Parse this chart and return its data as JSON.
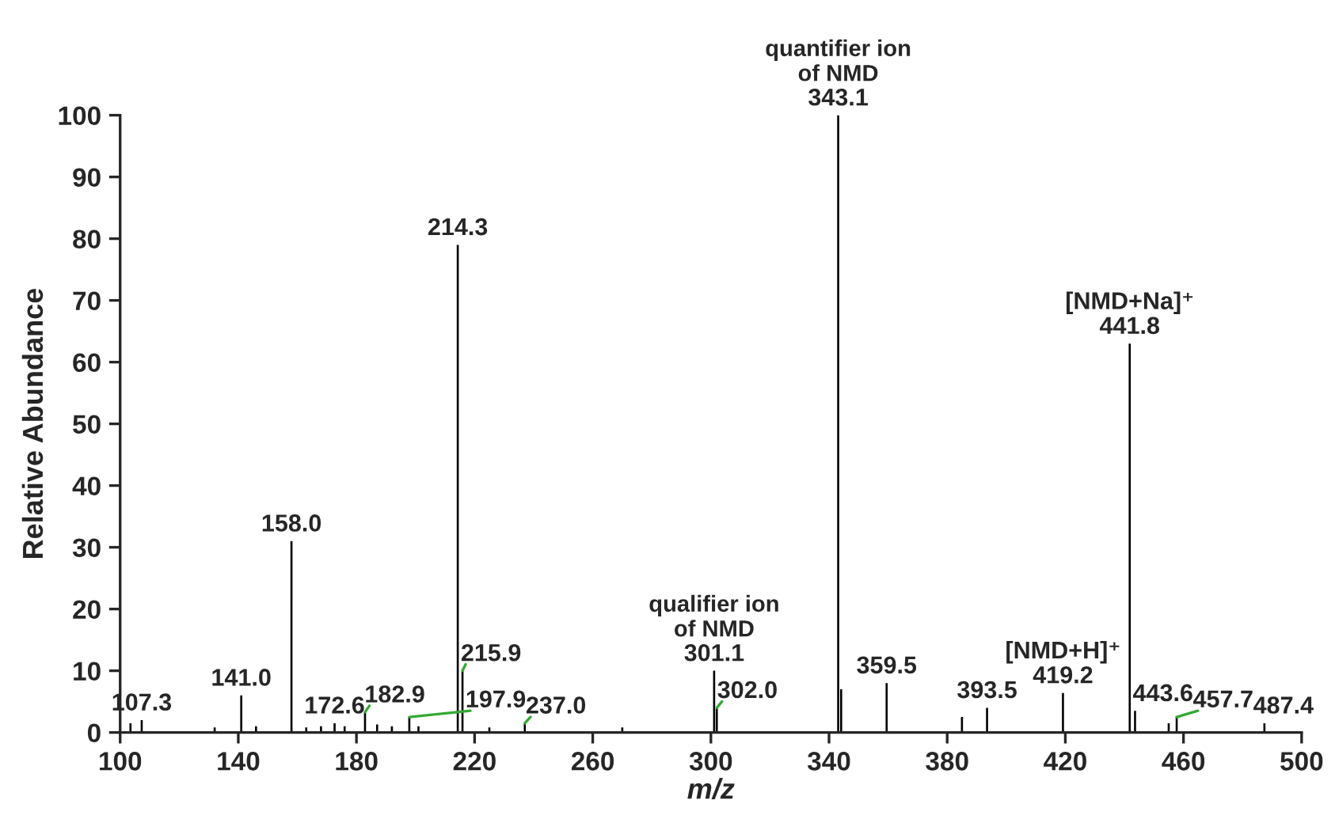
{
  "chart_data": {
    "type": "bar",
    "xlabel": "m/z",
    "ylabel": "Relative Abundance",
    "x": [
      103.5,
      107.3,
      132,
      141.0,
      146,
      158.0,
      163,
      168,
      172.6,
      176,
      182.9,
      187,
      192,
      197.9,
      201,
      214.3,
      215.9,
      225,
      237.0,
      270,
      301.1,
      302.0,
      343.1,
      344.1,
      359.5,
      385.0,
      393.5,
      419.2,
      441.8,
      443.6,
      455.0,
      457.7,
      487.4
    ],
    "values": [
      1.5,
      2,
      0.8,
      6,
      1,
      31,
      0.8,
      1,
      1.5,
      1,
      3.3,
      1.3,
      1,
      2.5,
      1,
      79,
      10,
      0.8,
      1.5,
      0.8,
      10,
      4,
      100,
      7,
      8,
      2.5,
      4,
      6.4,
      63,
      3.5,
      1.5,
      2.5,
      1.5
    ],
    "color": "#000000",
    "annotations": [
      {
        "text": "107.3",
        "x": 107.3,
        "y": 2
      },
      {
        "text": "141.0",
        "x": 141.0,
        "y": 6
      },
      {
        "text": "158.0",
        "x": 158.0,
        "y": 31
      },
      {
        "text": "172.6",
        "x": 172.6,
        "y": 1.5
      },
      {
        "text": "182.9",
        "x": 182.9,
        "y": 3.3
      },
      {
        "text": "197.9",
        "x": 197.9,
        "y": 2.5
      },
      {
        "text": "214.3",
        "x": 214.3,
        "y": 79
      },
      {
        "text": "215.9",
        "x": 215.9,
        "y": 10
      },
      {
        "text": "237.0",
        "x": 237.0,
        "y": 1.5
      },
      {
        "text": "301.1",
        "x": 301.1,
        "y": 10
      },
      {
        "text": "302.0",
        "x": 302.0,
        "y": 4
      },
      {
        "text": "343.1",
        "x": 343.1,
        "y": 100
      },
      {
        "text": "359.5",
        "x": 359.5,
        "y": 8
      },
      {
        "text": "393.5",
        "x": 393.5,
        "y": 4
      },
      {
        "text": "419.2",
        "x": 419.2,
        "y": 6.4
      },
      {
        "text": "441.8",
        "x": 441.8,
        "y": 63
      },
      {
        "text": "443.6",
        "x": 443.6,
        "y": 3.5
      },
      {
        "text": "457.7",
        "x": 457.7,
        "y": 2.5
      },
      {
        "text": "487.4",
        "x": 487.4,
        "y": 1.5
      },
      {
        "text": "quantifier ion\nof NMD",
        "x": 343.1,
        "y": 100
      },
      {
        "text": "qualifier ion\nof NMD",
        "x": 301.1,
        "y": 10
      },
      {
        "text": "[NMD+Na]⁺",
        "x": 441.8,
        "y": 63
      },
      {
        "text": "[NMD+H]⁺",
        "x": 419.2,
        "y": 6.4
      }
    ],
    "xlim": [
      100,
      500
    ],
    "xticks": [
      100,
      140,
      180,
      220,
      260,
      300,
      340,
      380,
      420,
      460,
      500
    ],
    "ylim": [
      0,
      100
    ],
    "yticks": [
      0,
      10,
      20,
      30,
      40,
      50,
      60,
      70,
      80,
      90,
      100
    ],
    "grid": false,
    "legend": false
  }
}
